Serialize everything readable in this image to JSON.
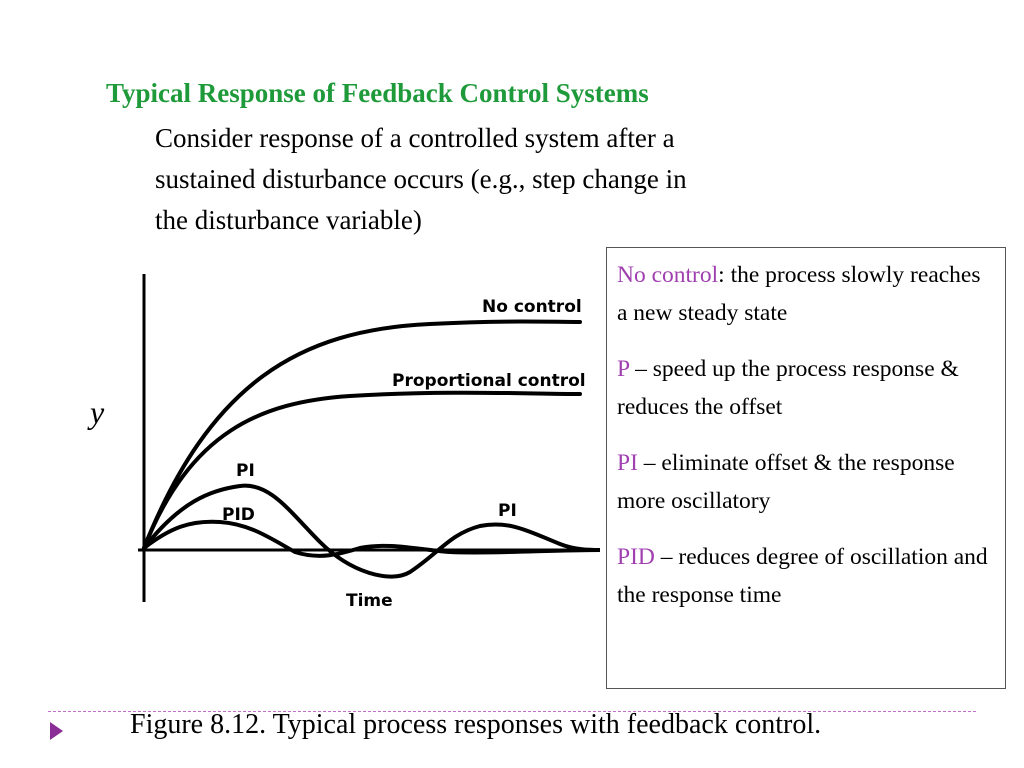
{
  "slide": {
    "title": "Typical Response of Feedback Control Systems",
    "intro_lines": [
      "Consider response of a controlled system after a",
      "sustained disturbance occurs (e.g., step change in",
      "the disturbance variable)"
    ],
    "y_axis_label": "y",
    "figure": {
      "curve_labels": {
        "no_control": "No control",
        "proportional": "Proportional control",
        "pi_upper": "PI",
        "pid": "PID",
        "pi_lower": "PI"
      },
      "x_axis_label": "Time"
    },
    "info": [
      {
        "term": "No control",
        "text": ": the process slowly reaches a new steady state"
      },
      {
        "term": "P",
        "text": " – speed up the process response & reduces the offset"
      },
      {
        "term": "PI",
        "text": " – eliminate offset & the response more oscillatory"
      },
      {
        "term": "PID",
        "text": " – reduces degree of oscillation and the response time"
      }
    ],
    "caption": "Figure 8.12. Typical process responses with feedback control.",
    "colors": {
      "title": "#1e9a3a",
      "term": "#a040b0",
      "bullet": "#8a2d96"
    }
  }
}
